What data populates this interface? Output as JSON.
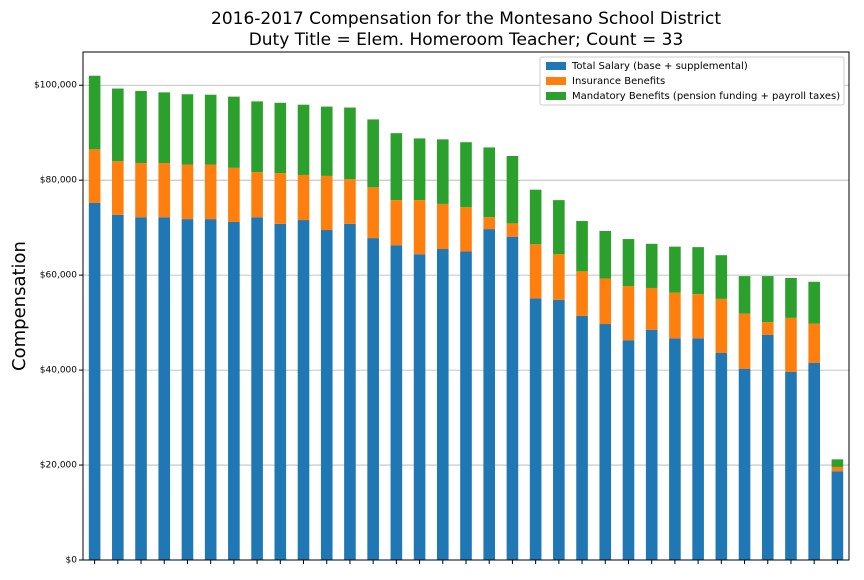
{
  "chart_data": {
    "type": "stacked_bar",
    "title": "2016-2017 Compensation for the Montesano School District",
    "subtitle": "Duty Title = Elem. Homeroom Teacher; Count = 33",
    "y_label": "Compensation",
    "categories": [
      null,
      null,
      null,
      null,
      null,
      null,
      null,
      null,
      null,
      null,
      null,
      null,
      null,
      null,
      null,
      null,
      null,
      null,
      null,
      null,
      null,
      null,
      null,
      null,
      null,
      null,
      null,
      null,
      null,
      null,
      null,
      null,
      null
    ],
    "series": [
      {
        "name": "Total Salary (base + supplemental)",
        "color": "#1f77b4",
        "values": [
          75200,
          72700,
          72200,
          72200,
          71800,
          71800,
          71200,
          72200,
          70800,
          71600,
          69500,
          70800,
          67800,
          66300,
          64400,
          65500,
          65000,
          69700,
          68100,
          55100,
          54800,
          51400,
          49700,
          46300,
          48500,
          46700,
          46700,
          43600,
          40300,
          47400,
          39600,
          41500,
          18700
        ]
      },
      {
        "name": "Insurance Benefits",
        "color": "#ff7f0e",
        "values": [
          11300,
          11300,
          11400,
          11400,
          11500,
          11500,
          11400,
          9500,
          10700,
          9500,
          11400,
          9400,
          10700,
          9500,
          11400,
          9500,
          9300,
          2500,
          2800,
          11400,
          9600,
          9400,
          9600,
          11400,
          8800,
          9600,
          9300,
          11400,
          11600,
          2700,
          11400,
          8300,
          900
        ]
      },
      {
        "name": "Mandatory Benefits (pension funding + payroll taxes)",
        "color": "#2ca02c",
        "values": [
          15500,
          15300,
          15200,
          14900,
          14800,
          14700,
          15000,
          14900,
          14800,
          14800,
          14600,
          15100,
          14300,
          14100,
          13000,
          13600,
          13700,
          14700,
          14200,
          11500,
          11400,
          10600,
          10000,
          9900,
          9300,
          9700,
          9900,
          9200,
          7900,
          9700,
          8400,
          8800,
          1600
        ]
      }
    ],
    "ylim": [
      0,
      107000
    ],
    "yticks": [
      {
        "value": 0,
        "label": "$0"
      },
      {
        "value": 20000,
        "label": "$20,000"
      },
      {
        "value": 40000,
        "label": "$40,000"
      },
      {
        "value": 60000,
        "label": "$60,000"
      },
      {
        "value": 80000,
        "label": "$80,000"
      },
      {
        "value": 100000,
        "label": "$100,000"
      }
    ],
    "grid": true,
    "legend": "upper right"
  }
}
